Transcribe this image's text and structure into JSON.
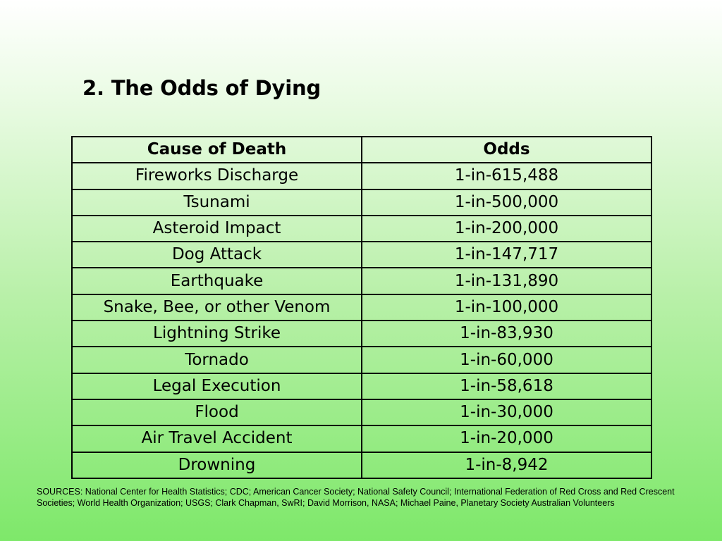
{
  "slide": {
    "title": "2. The Odds of Dying"
  },
  "table": {
    "headers": [
      "Cause of Death",
      "Odds"
    ],
    "rows": [
      [
        "Fireworks Discharge",
        "1-in-615,488"
      ],
      [
        "Tsunami",
        "1-in-500,000"
      ],
      [
        "Asteroid Impact",
        "1-in-200,000"
      ],
      [
        "Dog Attack",
        "1-in-147,717"
      ],
      [
        "Earthquake",
        "1-in-131,890"
      ],
      [
        "Snake, Bee, or other Venom",
        "1-in-100,000"
      ],
      [
        "Lightning Strike",
        "1-in-83,930"
      ],
      [
        "Tornado",
        "1-in-60,000"
      ],
      [
        "Legal Execution",
        "1-in-58,618"
      ],
      [
        "Flood",
        "1-in-30,000"
      ],
      [
        "Air Travel Accident",
        "1-in-20,000"
      ],
      [
        "Drowning",
        "1-in-8,942"
      ]
    ]
  },
  "footer": {
    "sources_line1": "SOURCES: National Center for Health Statistics; CDC; American Cancer Society; National Safety Council; International Federation of Red Cross and Red Crescent",
    "sources_line2": "Societies; World Health Organization; USGS; Clark Chapman, SwRI; David Morrison, NASA; Michael Paine, Planetary Society Australian Volunteers"
  },
  "colors": {
    "background_top": "#ffffff",
    "background_bottom": "#7ee86a",
    "table_border": "#000000"
  }
}
